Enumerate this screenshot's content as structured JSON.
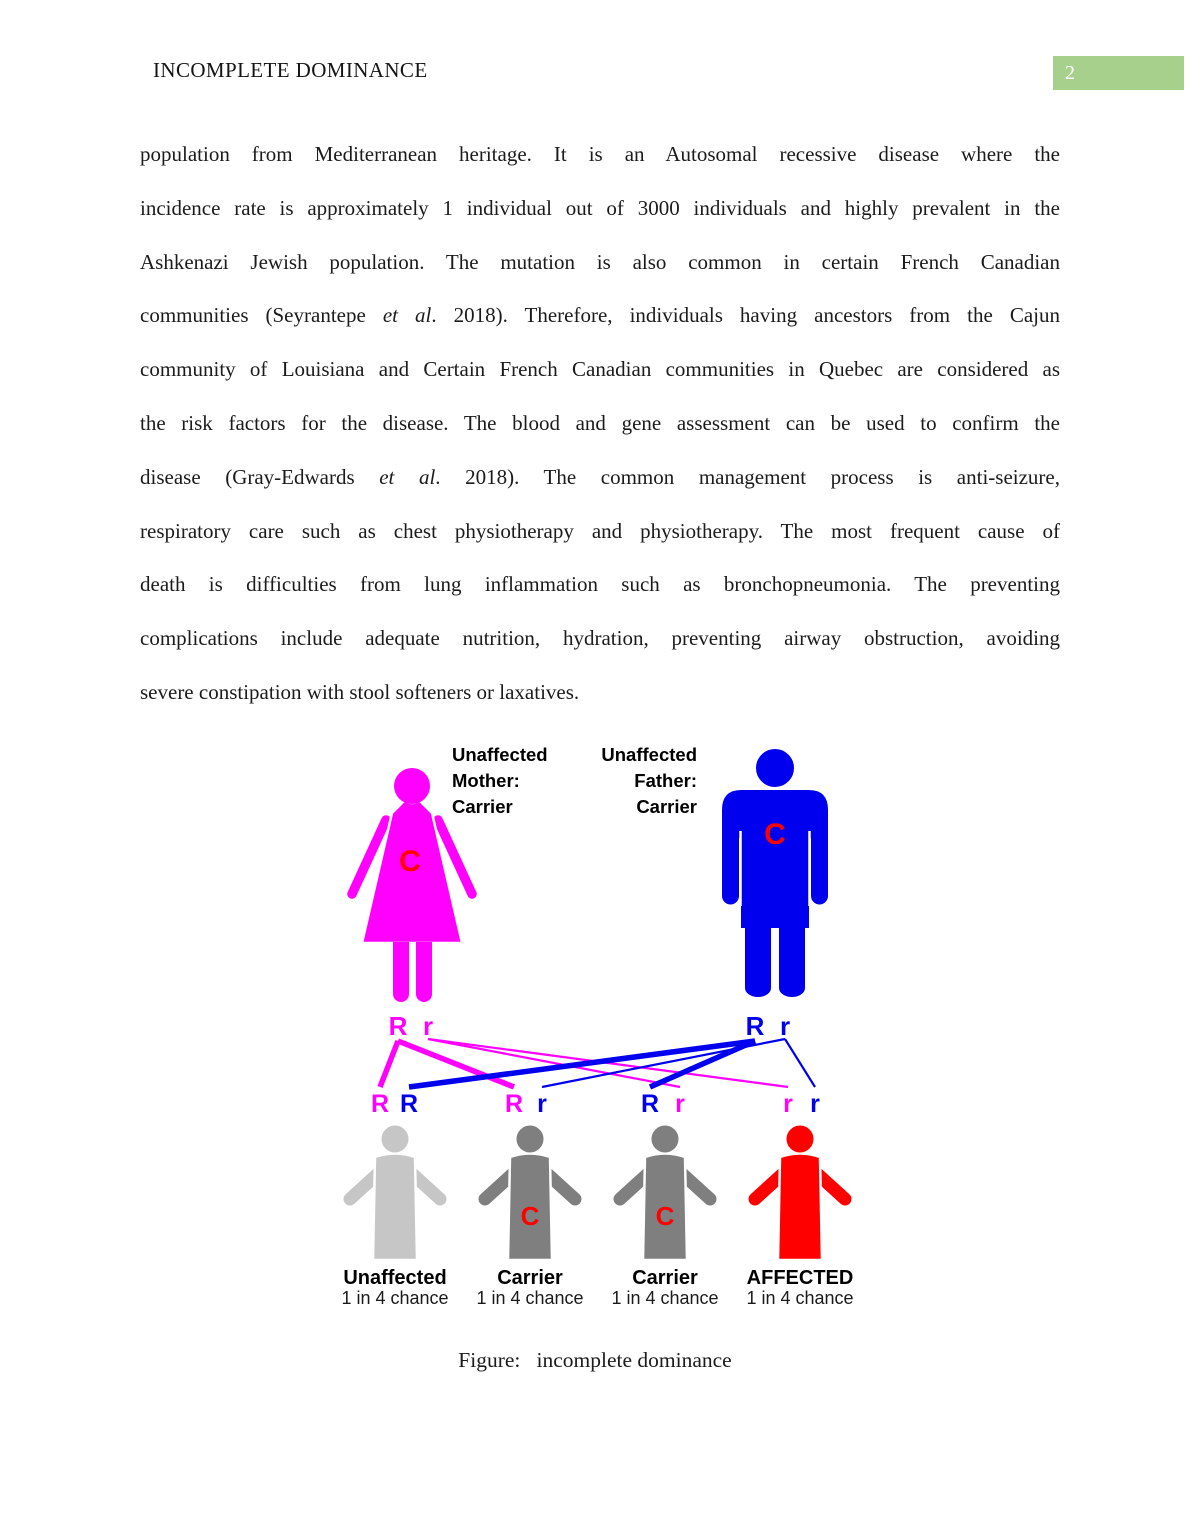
{
  "header": {
    "title": "INCOMPLETE DOMINANCE",
    "page_number": "2"
  },
  "colors": {
    "page_number_bg": "#a8d08d",
    "page_number_text": "#ffffff",
    "mother": "#ff00ff",
    "father": "#0000ee",
    "child_unaffected": "#c6c6c6",
    "child_carrier": "#7f7f7f",
    "child_affected": "#ff0000",
    "carrier_letter": "#ff0000"
  },
  "paragraph": {
    "lines": [
      [
        {
          "t": "population from Mediterranean heritage. It is an Autosomal recessive disease where the"
        }
      ],
      [
        {
          "t": "incidence rate is approximately 1 individual out of 3000 individuals and highly prevalent in the"
        }
      ],
      [
        {
          "t": "Ashkenazi Jewish population. The mutation is also common in certain French Canadian"
        }
      ],
      [
        {
          "t": "communities (Seyrantepe "
        },
        {
          "t": "et al",
          "i": true
        },
        {
          "t": ". 2018). Therefore, individuals having ancestors from the Cajun"
        }
      ],
      [
        {
          "t": "community of Louisiana and Certain French Canadian communities in Quebec are considered as"
        }
      ],
      [
        {
          "t": "the risk factors for the disease. The blood and gene assessment can be used to confirm the"
        }
      ],
      [
        {
          "t": "disease (Gray-Edwards "
        },
        {
          "t": "et al",
          "i": true
        },
        {
          "t": ". 2018). The common management process is anti-seizure,"
        }
      ],
      [
        {
          "t": "respiratory care such as chest physiotherapy and physiotherapy. The most frequent cause of"
        }
      ],
      [
        {
          "t": "death is difficulties from lung inflammation such as bronchopneumonia. The preventing"
        }
      ],
      [
        {
          "t": "complications include adequate nutrition, hydration, preventing airway obstruction, avoiding"
        }
      ],
      [
        {
          "t": "severe constipation with stool softeners or laxatives."
        }
      ]
    ]
  },
  "figure": {
    "mother": {
      "label_lines": [
        "Unaffected",
        "Mother:",
        "Carrier"
      ],
      "chest_letter": "C",
      "alleles": [
        "R",
        "r"
      ]
    },
    "father": {
      "label_lines": [
        "Unaffected",
        "Father:",
        "Carrier"
      ],
      "chest_letter": "C",
      "alleles": [
        "R",
        "r"
      ]
    },
    "children": [
      {
        "name": "Unaffected",
        "chance": "1 in 4 chance",
        "type": "unaffected",
        "chest_letter": "",
        "genotype": [
          {
            "t": "R",
            "parent": "mother"
          },
          {
            "t": "R",
            "parent": "father"
          }
        ]
      },
      {
        "name": "Carrier",
        "chance": "1 in 4 chance",
        "type": "carrier",
        "chest_letter": "C",
        "genotype": [
          {
            "t": "R",
            "parent": "mother"
          },
          {
            "t": "r",
            "parent": "father"
          }
        ]
      },
      {
        "name": "Carrier",
        "chance": "1 in 4 chance",
        "type": "carrier",
        "chest_letter": "C",
        "genotype": [
          {
            "t": "R",
            "parent": "father"
          },
          {
            "t": "r",
            "parent": "mother"
          }
        ]
      },
      {
        "name": "AFFECTED",
        "chance": "1 in 4 chance",
        "type": "affected",
        "chest_letter": "",
        "genotype": [
          {
            "t": "r",
            "parent": "mother"
          },
          {
            "t": "r",
            "parent": "father"
          }
        ]
      }
    ],
    "connections": [
      {
        "parent": "mother",
        "allele": 0,
        "child": 0,
        "slot": 0,
        "thick": true
      },
      {
        "parent": "mother",
        "allele": 0,
        "child": 1,
        "slot": 0,
        "thick": true
      },
      {
        "parent": "mother",
        "allele": 1,
        "child": 2,
        "slot": 1,
        "thick": false
      },
      {
        "parent": "mother",
        "allele": 1,
        "child": 3,
        "slot": 0,
        "thick": false
      },
      {
        "parent": "father",
        "allele": 0,
        "child": 0,
        "slot": 1,
        "thick": true
      },
      {
        "parent": "father",
        "allele": 0,
        "child": 2,
        "slot": 0,
        "thick": true
      },
      {
        "parent": "father",
        "allele": 1,
        "child": 1,
        "slot": 1,
        "thick": false
      },
      {
        "parent": "father",
        "allele": 1,
        "child": 3,
        "slot": 1,
        "thick": false
      }
    ]
  },
  "caption": {
    "text": "Figure:   incomplete dominance"
  }
}
